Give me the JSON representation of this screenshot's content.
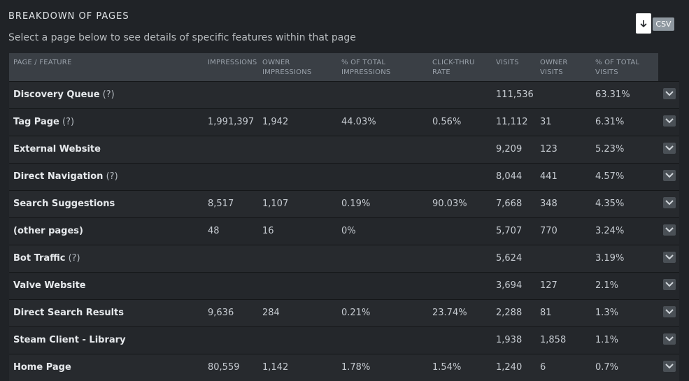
{
  "header": {
    "title": "BREAKDOWN OF PAGES",
    "subtitle": "Select a page below to see details of specific features within that page",
    "csv_label": "CSV"
  },
  "table": {
    "columns": {
      "page": "PAGE / FEATURE",
      "impressions": "IMPRESSIONS",
      "owner_impressions": "OWNER IMPRESSIONS",
      "pct_impressions": "% OF TOTAL IMPRESSIONS",
      "ctr": "CLICK-THRU RATE",
      "visits": "VISITS",
      "owner_visits": "OWNER VISITS",
      "pct_visits": "% OF TOTAL VISITS"
    },
    "rows": [
      {
        "name": "Discovery Queue",
        "help": "(?)",
        "impressions": "",
        "owner_impressions": "",
        "pct_impressions": "",
        "ctr": "",
        "visits": "111,536",
        "owner_visits": "",
        "pct_visits": "63.31%"
      },
      {
        "name": "Tag Page",
        "help": "(?)",
        "impressions": "1,991,397",
        "owner_impressions": "1,942",
        "pct_impressions": "44.03%",
        "ctr": "0.56%",
        "visits": "11,112",
        "owner_visits": "31",
        "pct_visits": "6.31%"
      },
      {
        "name": "External Website",
        "help": "",
        "impressions": "",
        "owner_impressions": "",
        "pct_impressions": "",
        "ctr": "",
        "visits": "9,209",
        "owner_visits": "123",
        "pct_visits": "5.23%"
      },
      {
        "name": "Direct Navigation",
        "help": "(?)",
        "impressions": "",
        "owner_impressions": "",
        "pct_impressions": "",
        "ctr": "",
        "visits": "8,044",
        "owner_visits": "441",
        "pct_visits": "4.57%"
      },
      {
        "name": "Search Suggestions",
        "help": "",
        "impressions": "8,517",
        "owner_impressions": "1,107",
        "pct_impressions": "0.19%",
        "ctr": "90.03%",
        "visits": "7,668",
        "owner_visits": "348",
        "pct_visits": "4.35%"
      },
      {
        "name": "(other pages)",
        "help": "",
        "impressions": "48",
        "owner_impressions": "16",
        "pct_impressions": "0%",
        "ctr": "",
        "visits": "5,707",
        "owner_visits": "770",
        "pct_visits": "3.24%"
      },
      {
        "name": "Bot Traffic",
        "help": "(?)",
        "impressions": "",
        "owner_impressions": "",
        "pct_impressions": "",
        "ctr": "",
        "visits": "5,624",
        "owner_visits": "",
        "pct_visits": "3.19%"
      },
      {
        "name": "Valve Website",
        "help": "",
        "impressions": "",
        "owner_impressions": "",
        "pct_impressions": "",
        "ctr": "",
        "visits": "3,694",
        "owner_visits": "127",
        "pct_visits": "2.1%"
      },
      {
        "name": "Direct Search Results",
        "help": "",
        "impressions": "9,636",
        "owner_impressions": "284",
        "pct_impressions": "0.21%",
        "ctr": "23.74%",
        "visits": "2,288",
        "owner_visits": "81",
        "pct_visits": "1.3%"
      },
      {
        "name": "Steam Client - Library",
        "help": "",
        "impressions": "",
        "owner_impressions": "",
        "pct_impressions": "",
        "ctr": "",
        "visits": "1,938",
        "owner_visits": "1,858",
        "pct_visits": "1.1%"
      },
      {
        "name": "Home Page",
        "help": "",
        "impressions": "80,559",
        "owner_impressions": "1,142",
        "pct_impressions": "1.78%",
        "ctr": "1.54%",
        "visits": "1,240",
        "owner_visits": "6",
        "pct_visits": "0.7%"
      }
    ]
  },
  "icons": {
    "csv": "download-file-icon",
    "expand": "chevron-down-icon"
  }
}
